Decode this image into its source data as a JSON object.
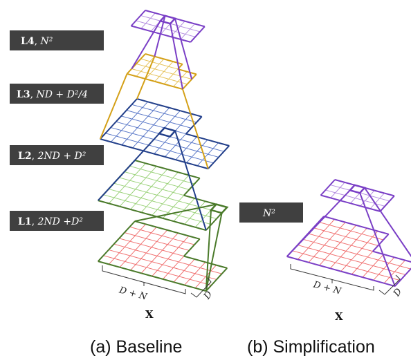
{
  "colors": {
    "l4": "#7a3fc6",
    "l4_grid": "#b48ee0",
    "l3": "#d4a017",
    "l3_grid": "#e6c35c",
    "l2": "#223f8a",
    "l2_grid": "#5a78c8",
    "l1": "#4a7a2a",
    "l1_grid": "#9bd27a",
    "input": "#4a7a2a",
    "input_grid": "#f07070",
    "simp": "#7a3fc6",
    "simp_grid": "#f07070",
    "label_bg": "#404040"
  },
  "baseline": {
    "labels": {
      "l4": {
        "name": "L4",
        "sep": ", ",
        "expr": "N²"
      },
      "l3": {
        "name": "L3",
        "sep": ", ",
        "expr": "ND + D²/4"
      },
      "l2": {
        "name": "L2",
        "sep": ", ",
        "expr": "2ND + D²"
      },
      "l1": {
        "name": "L1",
        "sep": ", ",
        "expr": "2ND +D²"
      }
    },
    "dim_width": "D + N",
    "dim_depth": "D",
    "input_label": "X",
    "caption": "(a) Baseline"
  },
  "simplification": {
    "label": "N²",
    "dim_width": "D + N",
    "dim_depth": "D",
    "input_label": "X",
    "caption": "(b) Simplification"
  }
}
